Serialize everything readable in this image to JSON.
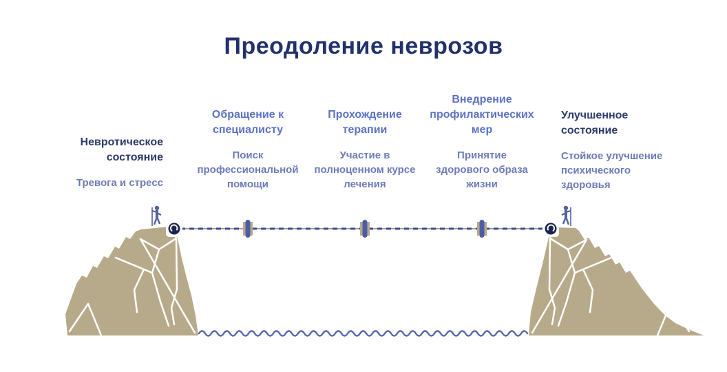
{
  "title": "Преодоление неврозов",
  "stages": [
    {
      "heading": "Невротическое\nсостояние",
      "sub": "Тревога и стресс"
    },
    {
      "heading": "Обращение к\nспециалисту",
      "sub": "Поиск\nпрофессиональной\nпомощи"
    },
    {
      "heading": "Прохождение\nтерапии",
      "sub": "Участие в\nполноценном курсе\nлечения"
    },
    {
      "heading": "Внедрение\nпрофилактических\nмер",
      "sub": "Принятие\nздорового образа\nжизни"
    },
    {
      "heading": "Улучшенное\nсостояние",
      "sub": "Стойкое улучшение\nпсихического\nздоровья"
    }
  ],
  "icons": {
    "left_figure": "hiker-icon",
    "right_figure": "hiker-icon",
    "rope_ends": "carabiner-anchor-icon"
  },
  "colors": {
    "title": "#22316b",
    "heading_dark": "#2d3a69",
    "heading_light": "#5a71c4",
    "subtext": "#6d7ab8",
    "cliff": "#b7aa8b",
    "figure": "#52619e",
    "rope_base": "#a79e90",
    "rope_dash": "#3b4d97",
    "knot": "#4c5ca6",
    "anchor": "#1a2550",
    "wave": "#5366ad"
  }
}
